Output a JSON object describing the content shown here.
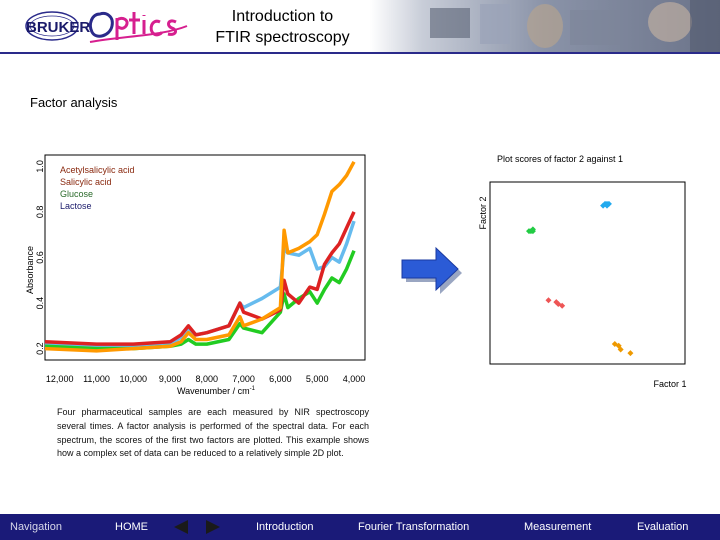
{
  "header": {
    "logo_text": "BRUKER Optics",
    "title_line1": "Introduction to",
    "title_line2": "FTIR spectroscopy"
  },
  "section_title": "Factor analysis",
  "spectrum_chart": {
    "type": "line",
    "ylabel": "Absorbance",
    "xlabel": "Wavenumber / cm",
    "xlabel_superscript": "-1",
    "y_ticks": [
      "0.2",
      "0.4",
      "0.6",
      "0.8",
      "1.0"
    ],
    "x_ticks": [
      "12,000",
      "11,000",
      "10,000",
      "9,000",
      "8,000",
      "7,000",
      "6,000",
      "5,000",
      "4,000"
    ],
    "legend": [
      "Acetylsalicylic acid",
      "Salicylic acid",
      "Glucose",
      "Lactose"
    ],
    "colors": [
      "#ff9900",
      "#dd2222",
      "#22cc22",
      "#66bbee"
    ]
  },
  "scores_chart": {
    "type": "scatter",
    "title": "Plot scores of factor 2 against 1",
    "xlabel": "Factor 1",
    "ylabel": "Factor 2"
  },
  "description": "Four pharmaceutical samples are each measured by NIR spectroscopy several times. A factor analysis is performed of the spectral data. For each spectrum, the scores of the first two factors are plotted. This example shows how a complex set of data can be reduced to a relatively simple 2D plot.",
  "footer": {
    "navigation": "Navigation",
    "home": "HOME",
    "introduction": "Introduction",
    "fourier": "Fourier Transformation",
    "measurement": "Measurement",
    "evaluation": "Evaluation"
  },
  "chart_data": [
    {
      "type": "line",
      "xlabel": "Wavenumber / cm-1",
      "ylabel": "Absorbance",
      "xlim": [
        12400,
        3700
      ],
      "ylim": [
        0.15,
        1.05
      ],
      "series": [
        {
          "name": "Acetylsalicylic acid",
          "x": [
            12400,
            11000,
            10000,
            9000,
            8700,
            8500,
            8300,
            8000,
            7400,
            7100,
            7000,
            6500,
            6000,
            5900,
            5800,
            5500,
            5200,
            5000,
            4800,
            4600,
            4400,
            4200,
            4000
          ],
          "y": [
            0.2,
            0.19,
            0.2,
            0.21,
            0.23,
            0.27,
            0.24,
            0.24,
            0.26,
            0.34,
            0.3,
            0.33,
            0.38,
            0.72,
            0.62,
            0.64,
            0.67,
            0.7,
            0.79,
            0.89,
            0.92,
            0.96,
            1.02
          ]
        },
        {
          "name": "Salicylic acid",
          "x": [
            12400,
            11000,
            10000,
            9000,
            8700,
            8500,
            8300,
            8000,
            7400,
            7100,
            7000,
            6500,
            6000,
            5900,
            5800,
            5500,
            5200,
            5000,
            4800,
            4600,
            4400,
            4200,
            4000
          ],
          "y": [
            0.23,
            0.22,
            0.22,
            0.23,
            0.26,
            0.3,
            0.26,
            0.27,
            0.3,
            0.4,
            0.36,
            0.33,
            0.37,
            0.5,
            0.44,
            0.4,
            0.47,
            0.46,
            0.57,
            0.62,
            0.66,
            0.73,
            0.8
          ]
        },
        {
          "name": "Glucose",
          "x": [
            12400,
            11000,
            10000,
            9000,
            8700,
            8500,
            8300,
            8000,
            7400,
            7100,
            7000,
            6500,
            6000,
            5900,
            5800,
            5500,
            5200,
            5000,
            4800,
            4600,
            4400,
            4200,
            4000
          ],
          "y": [
            0.21,
            0.2,
            0.2,
            0.21,
            0.22,
            0.24,
            0.22,
            0.22,
            0.24,
            0.31,
            0.29,
            0.27,
            0.36,
            0.44,
            0.38,
            0.42,
            0.45,
            0.4,
            0.46,
            0.51,
            0.49,
            0.55,
            0.63
          ]
        },
        {
          "name": "Lactose",
          "x": [
            12400,
            11000,
            10000,
            9000,
            8700,
            8500,
            8300,
            8000,
            7400,
            7100,
            7000,
            6500,
            6000,
            5900,
            5800,
            5500,
            5200,
            5000,
            4800,
            4600,
            4400,
            4200,
            4000
          ],
          "y": [
            0.22,
            0.21,
            0.21,
            0.22,
            0.25,
            0.29,
            0.26,
            0.27,
            0.3,
            0.4,
            0.38,
            0.42,
            0.47,
            0.64,
            0.62,
            0.61,
            0.64,
            0.55,
            0.56,
            0.6,
            0.58,
            0.66,
            0.76
          ]
        }
      ]
    },
    {
      "type": "scatter",
      "title": "Plot scores of factor 2 against 1",
      "xlabel": "Factor 1",
      "ylabel": "Factor 2",
      "xlim": [
        0,
        1
      ],
      "ylim": [
        0,
        1
      ],
      "series": [
        {
          "color": "#22aaee",
          "x": [
            0.58,
            0.59,
            0.6,
            0.6,
            0.61
          ],
          "y": [
            0.87,
            0.88,
            0.87,
            0.88,
            0.88
          ]
        },
        {
          "color": "#22cc44",
          "x": [
            0.2,
            0.21,
            0.22,
            0.22
          ],
          "y": [
            0.73,
            0.73,
            0.74,
            0.73
          ]
        },
        {
          "color": "#ee5555",
          "x": [
            0.3,
            0.34,
            0.35,
            0.37
          ],
          "y": [
            0.35,
            0.34,
            0.33,
            0.32
          ]
        },
        {
          "color": "#ee9900",
          "x": [
            0.64,
            0.66,
            0.67,
            0.72
          ],
          "y": [
            0.11,
            0.1,
            0.08,
            0.06
          ]
        }
      ]
    }
  ]
}
